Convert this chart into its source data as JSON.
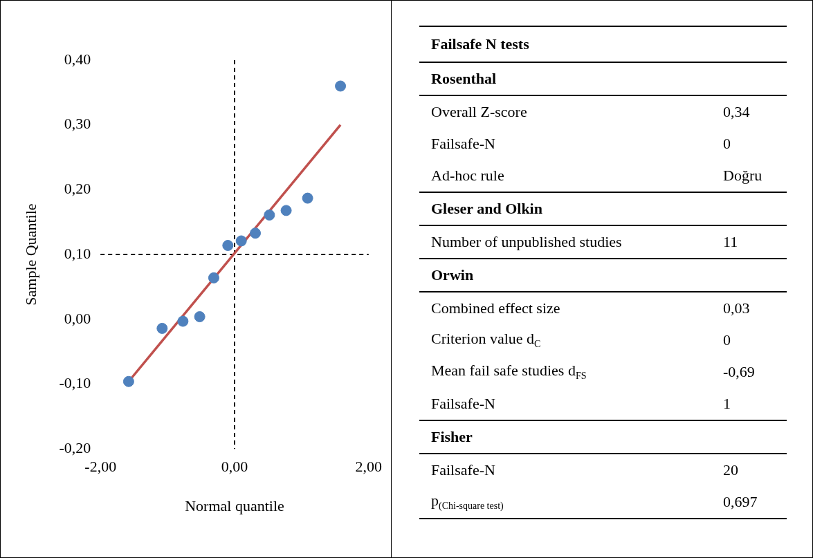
{
  "chart_data": [
    {
      "type": "scatter",
      "xlabel": "Normal quantile",
      "ylabel": "Sample Quantile",
      "xlim": [
        -2,
        2
      ],
      "xticks": [
        {
          "value": -2,
          "label": "-2,00"
        },
        {
          "value": 0,
          "label": "0,00"
        },
        {
          "value": 2,
          "label": "2,00"
        }
      ],
      "ylim": [
        -0.2,
        0.4
      ],
      "yticks": [
        {
          "value": -0.2,
          "label": "-0,20"
        },
        {
          "value": -0.1,
          "label": "-0,10"
        },
        {
          "value": 0,
          "label": "0,00"
        },
        {
          "value": 0.1,
          "label": "0,10"
        },
        {
          "value": 0.2,
          "label": "0,20"
        },
        {
          "value": 0.3,
          "label": "0,30"
        },
        {
          "value": 0.4,
          "label": "0,40"
        }
      ],
      "grid": false,
      "series": [
        {
          "type": "scatter",
          "marker": "circle",
          "color": "#4f81bd",
          "x": [
            -1.58,
            -1.08,
            -0.77,
            -0.52,
            -0.31,
            -0.1,
            0.1,
            0.31,
            0.52,
            0.77,
            1.09,
            1.58
          ],
          "values": [
            -0.096,
            -0.014,
            -0.003,
            0.004,
            0.064,
            0.114,
            0.121,
            0.133,
            0.161,
            0.168,
            0.187,
            0.36
          ]
        },
        {
          "type": "line",
          "marker": "none",
          "color": "#c0504d",
          "x": [
            -1.58,
            1.58
          ],
          "values": [
            -0.096,
            0.3
          ]
        }
      ],
      "ref_lines": [
        {
          "axis": "y",
          "value": 0.1,
          "color": "#000000",
          "line_style": "dashed"
        },
        {
          "axis": "x",
          "value": 0,
          "color": "#000000",
          "line_style": "dashed"
        }
      ]
    },
    {
      "type": "other",
      "title": "Failsafe N tests",
      "categories": [
        "Rosenthal",
        "Overall Z-score",
        "Failsafe-N",
        "Ad-hoc rule",
        "Gleser and Olkin",
        "Number of unpublished studies",
        "Orwin",
        "Combined effect size",
        "Criterion value d$_{C}$",
        "Mean fail safe studies d$_{FS}$",
        "Failsafe-N",
        "Fisher",
        "Failsafe-N",
        "p$_{(Chi-square test)}$"
      ],
      "value_labels": [
        null,
        "0,34",
        "0",
        "Doğru",
        null,
        "11",
        null,
        "0,03",
        "0",
        "-0,69",
        "1",
        null,
        "20",
        "0,697"
      ]
    }
  ]
}
